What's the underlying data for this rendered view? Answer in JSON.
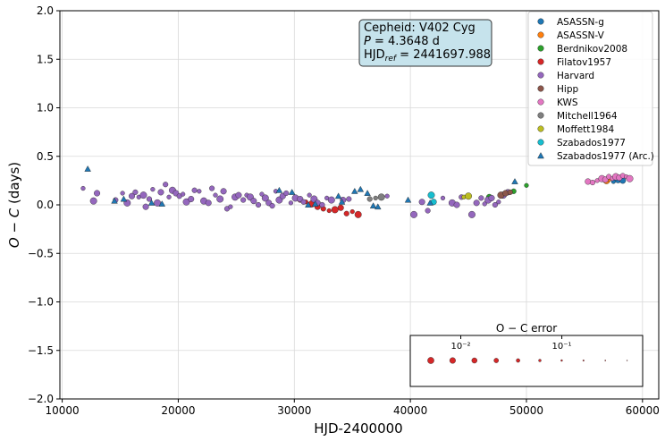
{
  "chart_data": {
    "type": "scatter",
    "xlabel": "HJD-2400000",
    "ylabel": "O − C (days)",
    "xlim": [
      9800,
      61400
    ],
    "ylim": [
      -2.0,
      2.0
    ],
    "x_ticks": [
      10000,
      20000,
      30000,
      40000,
      50000,
      60000
    ],
    "x_tick_labels": [
      "10000",
      "20000",
      "30000",
      "40000",
      "50000",
      "60000"
    ],
    "y_ticks": [
      -2.0,
      -1.5,
      -1.0,
      -0.5,
      0.0,
      0.5,
      1.0,
      1.5,
      2.0
    ],
    "y_tick_labels": [
      "−2.0",
      "−1.5",
      "−1.0",
      "−0.5",
      "0.0",
      "0.5",
      "1.0",
      "1.5",
      "2.0"
    ],
    "grid": true,
    "legend_position": "top-right",
    "info_box": {
      "lines": [
        "Cepheid: V402 Cyg",
        "P = 4.3648 d",
        "HJD_ref = 2441697.988"
      ],
      "line1": "Cepheid: V402 Cyg",
      "line2_label": "P",
      "line2_value": " = 4.3648 d",
      "line3_label": "HJD",
      "line3_sub": "ref",
      "line3_value": " = 2441697.988"
    },
    "error_inset": {
      "title": "O − C error",
      "tick_labels": [
        "10⁻²",
        "10⁻¹"
      ],
      "tick_values": [
        0.01,
        0.1
      ]
    },
    "series": [
      {
        "name": "ASASSN-g",
        "marker": "circle",
        "color": "#1f77b4",
        "points": [
          [
            57500,
            0.24
          ],
          [
            57900,
            0.26
          ],
          [
            58300,
            0.25
          ]
        ]
      },
      {
        "name": "ASASSN-V",
        "marker": "circle",
        "color": "#ff7f0e",
        "points": [
          [
            56900,
            0.25
          ],
          [
            57100,
            0.27
          ]
        ]
      },
      {
        "name": "Berdnikov2008",
        "marker": "circle",
        "color": "#2ca02c",
        "points": [
          [
            46800,
            0.08
          ],
          [
            48900,
            0.14
          ],
          [
            50000,
            0.2
          ]
        ]
      },
      {
        "name": "Filatov1957",
        "marker": "circle",
        "color": "#d62728",
        "points": [
          [
            30500,
            0.05
          ],
          [
            31000,
            0.03
          ],
          [
            31500,
            0.01
          ],
          [
            32000,
            -0.02
          ],
          [
            32500,
            -0.04
          ],
          [
            33000,
            -0.06
          ],
          [
            33500,
            -0.05
          ],
          [
            34000,
            -0.03
          ],
          [
            34500,
            -0.09
          ],
          [
            35000,
            -0.07
          ],
          [
            35500,
            -0.1
          ]
        ]
      },
      {
        "name": "Harvard",
        "marker": "circle",
        "color": "#9467bd",
        "points": [
          [
            11800,
            0.17
          ],
          [
            12700,
            0.04
          ],
          [
            13000,
            0.12
          ],
          [
            14600,
            0.05
          ],
          [
            15200,
            0.12
          ],
          [
            15600,
            0.02
          ],
          [
            16000,
            0.09
          ],
          [
            16300,
            0.13
          ],
          [
            16600,
            0.08
          ],
          [
            17000,
            0.1
          ],
          [
            17200,
            -0.02
          ],
          [
            17500,
            0.06
          ],
          [
            17800,
            0.16
          ],
          [
            18200,
            0.02
          ],
          [
            18500,
            0.13
          ],
          [
            18900,
            0.21
          ],
          [
            19200,
            0.08
          ],
          [
            19500,
            0.15
          ],
          [
            19800,
            0.12
          ],
          [
            20100,
            0.09
          ],
          [
            20400,
            0.11
          ],
          [
            20700,
            0.03
          ],
          [
            21100,
            0.06
          ],
          [
            21400,
            0.15
          ],
          [
            21800,
            0.14
          ],
          [
            22200,
            0.04
          ],
          [
            22600,
            0.02
          ],
          [
            22900,
            0.17
          ],
          [
            23200,
            0.1
          ],
          [
            23600,
            0.06
          ],
          [
            23900,
            0.14
          ],
          [
            24200,
            -0.04
          ],
          [
            24500,
            -0.02
          ],
          [
            24900,
            0.08
          ],
          [
            25200,
            0.1
          ],
          [
            25600,
            0.05
          ],
          [
            25900,
            0.1
          ],
          [
            26200,
            0.08
          ],
          [
            26500,
            0.04
          ],
          [
            26900,
            0.0
          ],
          [
            27200,
            0.11
          ],
          [
            27500,
            0.07
          ],
          [
            27800,
            0.02
          ],
          [
            28100,
            -0.01
          ],
          [
            28400,
            0.14
          ],
          [
            28700,
            0.05
          ],
          [
            29000,
            0.09
          ],
          [
            29300,
            0.12
          ],
          [
            29700,
            0.02
          ],
          [
            30100,
            0.07
          ],
          [
            30500,
            0.06
          ],
          [
            30800,
            0.03
          ],
          [
            31300,
            0.1
          ],
          [
            31700,
            0.06
          ],
          [
            32000,
            0.02
          ],
          [
            32400,
            0.0
          ],
          [
            32800,
            0.07
          ],
          [
            33200,
            0.05
          ],
          [
            34200,
            0.05
          ],
          [
            34700,
            0.06
          ],
          [
            38000,
            0.09
          ],
          [
            40300,
            -0.1
          ],
          [
            41000,
            0.03
          ],
          [
            41500,
            -0.06
          ],
          [
            42800,
            0.07
          ],
          [
            43600,
            0.02
          ],
          [
            44000,
            0.0
          ],
          [
            44400,
            0.08
          ],
          [
            44900,
            0.09
          ],
          [
            45300,
            -0.1
          ],
          [
            45700,
            0.02
          ],
          [
            46100,
            0.07
          ],
          [
            46400,
            0.01
          ],
          [
            46700,
            0.05
          ],
          [
            47000,
            0.07
          ],
          [
            47300,
            0.0
          ],
          [
            47600,
            0.03
          ],
          [
            48000,
            0.1
          ],
          [
            48400,
            0.13
          ]
        ]
      },
      {
        "name": "Hipp",
        "marker": "circle",
        "color": "#8c564b",
        "points": [
          [
            47800,
            0.1
          ],
          [
            48200,
            0.12
          ],
          [
            48600,
            0.13
          ]
        ]
      },
      {
        "name": "KWS",
        "marker": "circle",
        "color": "#e377c2",
        "points": [
          [
            55300,
            0.24
          ],
          [
            55700,
            0.23
          ],
          [
            56100,
            0.25
          ],
          [
            56500,
            0.27
          ],
          [
            56800,
            0.26
          ],
          [
            57100,
            0.29
          ],
          [
            57400,
            0.27
          ],
          [
            57700,
            0.29
          ],
          [
            58000,
            0.28
          ],
          [
            58300,
            0.3
          ],
          [
            58600,
            0.29
          ],
          [
            58900,
            0.27
          ]
        ]
      },
      {
        "name": "Mitchell1964",
        "marker": "circle",
        "color": "#7f7f7f",
        "points": [
          [
            36500,
            0.06
          ],
          [
            37000,
            0.07
          ],
          [
            37500,
            0.08
          ]
        ]
      },
      {
        "name": "Moffett1984",
        "marker": "circle",
        "color": "#bcbd22",
        "points": [
          [
            44600,
            0.08
          ],
          [
            45000,
            0.09
          ]
        ]
      },
      {
        "name": "Szabados1977",
        "marker": "circle",
        "color": "#17becf",
        "points": [
          [
            41800,
            0.1
          ],
          [
            42000,
            0.03
          ]
        ]
      },
      {
        "name": "Szabados1977 (Arc.)",
        "marker": "triangle",
        "color": "#1f77b4",
        "points": [
          [
            12200,
            0.37
          ],
          [
            14500,
            0.04
          ],
          [
            15300,
            0.06
          ],
          [
            17700,
            0.02
          ],
          [
            18600,
            0.01
          ],
          [
            28700,
            0.15
          ],
          [
            29800,
            0.13
          ],
          [
            31200,
            0.0
          ],
          [
            31800,
            0.01
          ],
          [
            33800,
            0.09
          ],
          [
            34100,
            0.03
          ],
          [
            35200,
            0.14
          ],
          [
            35700,
            0.16
          ],
          [
            36300,
            0.12
          ],
          [
            36800,
            -0.01
          ],
          [
            37200,
            -0.02
          ],
          [
            39800,
            0.05
          ],
          [
            41700,
            0.02
          ],
          [
            49000,
            0.24
          ]
        ]
      }
    ]
  }
}
